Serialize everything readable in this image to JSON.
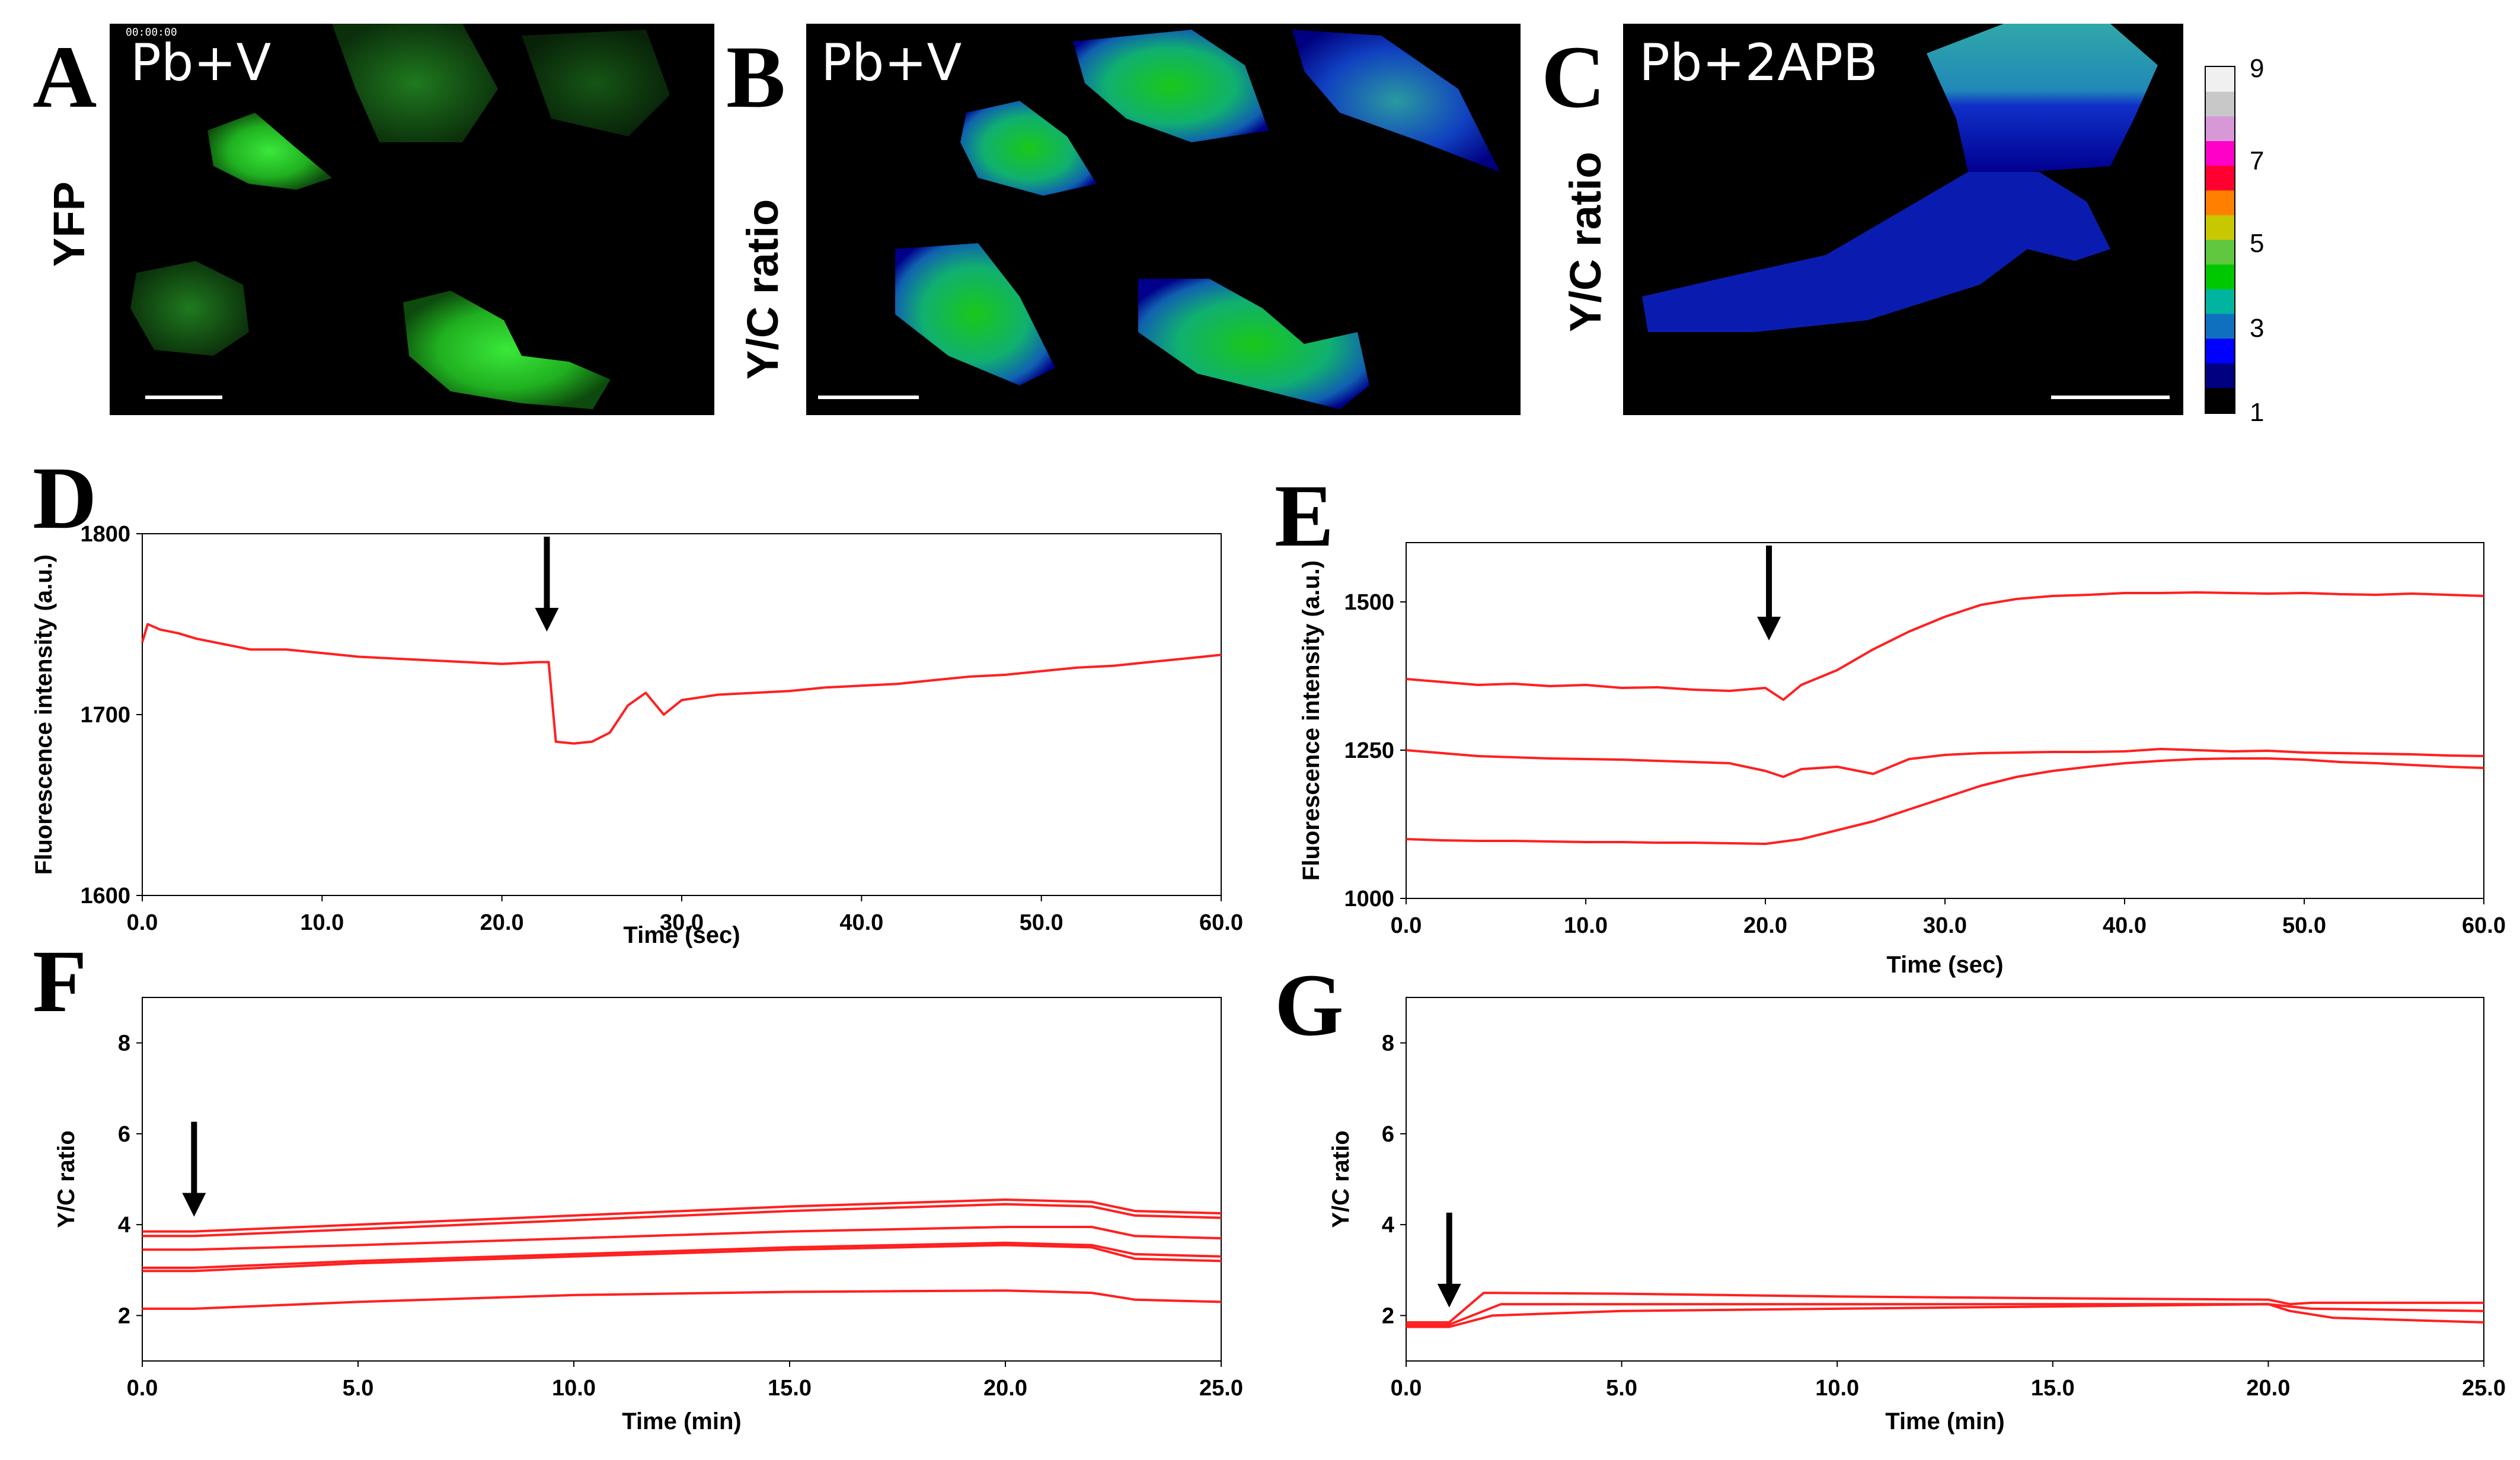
{
  "image_panels": [
    {
      "letter": "A",
      "label": "Pb+V",
      "side_label": "YFP",
      "timestamp": "00:00:00"
    },
    {
      "letter": "B",
      "label": "Pb+V",
      "side_label": "Y/C ratio"
    },
    {
      "letter": "C",
      "label": "Pb+2APB",
      "side_label": "Y/C ratio"
    }
  ],
  "colorbar": {
    "ticks": [
      "9",
      "7",
      "5",
      "3",
      "1"
    ],
    "colors": [
      "#f0f0f0",
      "#c8c8c8",
      "#d898d8",
      "#ff00c8",
      "#ff0030",
      "#ff8000",
      "#c8c800",
      "#60c840",
      "#00c800",
      "#00b4a0",
      "#1070c0",
      "#0000ff",
      "#000080",
      "#000000"
    ]
  },
  "accent_color": "#ff2020",
  "chart_data": [
    {
      "letter": "D",
      "type": "line",
      "xlabel": "Time (sec)",
      "ylabel": "Fluorescence intensity (a.u.)",
      "xlim": [
        0,
        60
      ],
      "ylim": [
        1600,
        1800
      ],
      "xticks": [
        "0.0",
        "10.0",
        "20.0",
        "30.0",
        "40.0",
        "50.0",
        "60.0"
      ],
      "yticks": [
        "1600",
        "1700",
        "1800"
      ],
      "arrow_at": 22.5,
      "series": [
        {
          "x": [
            0,
            0.3,
            1,
            2,
            3,
            4,
            5,
            6,
            8,
            10,
            12,
            14,
            16,
            18,
            20,
            22,
            22.6,
            23,
            24,
            25,
            26,
            27,
            28,
            29,
            30,
            32,
            34,
            36,
            38,
            40,
            42,
            44,
            46,
            48,
            50,
            52,
            54,
            56,
            58,
            60
          ],
          "y": [
            1740,
            1750,
            1747,
            1745,
            1742,
            1740,
            1738,
            1736,
            1736,
            1734,
            1732,
            1731,
            1730,
            1729,
            1728,
            1729,
            1729,
            1685,
            1684,
            1685,
            1690,
            1705,
            1712,
            1700,
            1708,
            1711,
            1712,
            1713,
            1715,
            1716,
            1717,
            1719,
            1721,
            1722,
            1724,
            1726,
            1727,
            1729,
            1731,
            1733
          ]
        }
      ]
    },
    {
      "letter": "E",
      "type": "line",
      "xlabel": "Time (sec)",
      "ylabel": "Fluorescence intensity (a.u.)",
      "xlim": [
        0,
        60
      ],
      "ylim": [
        1000,
        1600
      ],
      "xticks": [
        "0.0",
        "10.0",
        "20.0",
        "30.0",
        "40.0",
        "50.0",
        "60.0"
      ],
      "yticks": [
        "1000",
        "1250",
        "1500"
      ],
      "arrow_at": 20.2,
      "series": [
        {
          "x": [
            0,
            2,
            4,
            6,
            8,
            10,
            12,
            14,
            16,
            18,
            20,
            21,
            22,
            24,
            26,
            28,
            30,
            32,
            34,
            36,
            38,
            40,
            42,
            44,
            46,
            48,
            50,
            52,
            54,
            56,
            58,
            60
          ],
          "y": [
            1370,
            1365,
            1360,
            1362,
            1358,
            1360,
            1355,
            1356,
            1352,
            1350,
            1355,
            1335,
            1360,
            1385,
            1420,
            1450,
            1475,
            1495,
            1505,
            1510,
            1512,
            1515,
            1515,
            1516,
            1515,
            1514,
            1515,
            1513,
            1512,
            1514,
            1512,
            1510
          ]
        },
        {
          "x": [
            0,
            2,
            4,
            6,
            8,
            10,
            12,
            14,
            16,
            18,
            20,
            21,
            22,
            24,
            26,
            28,
            30,
            32,
            34,
            36,
            38,
            40,
            42,
            44,
            46,
            48,
            50,
            52,
            54,
            56,
            58,
            60
          ],
          "y": [
            1250,
            1245,
            1240,
            1238,
            1236,
            1235,
            1234,
            1232,
            1230,
            1228,
            1215,
            1205,
            1218,
            1222,
            1210,
            1235,
            1242,
            1245,
            1246,
            1247,
            1247,
            1248,
            1252,
            1250,
            1248,
            1249,
            1246,
            1245,
            1244,
            1243,
            1241,
            1240
          ]
        },
        {
          "x": [
            0,
            2,
            4,
            6,
            8,
            10,
            12,
            14,
            16,
            18,
            20,
            22,
            24,
            26,
            28,
            30,
            32,
            34,
            36,
            38,
            40,
            42,
            44,
            46,
            48,
            50,
            52,
            54,
            56,
            58,
            60
          ],
          "y": [
            1100,
            1098,
            1097,
            1097,
            1096,
            1095,
            1095,
            1094,
            1094,
            1093,
            1092,
            1100,
            1115,
            1130,
            1150,
            1170,
            1190,
            1205,
            1215,
            1222,
            1228,
            1232,
            1235,
            1236,
            1236,
            1234,
            1230,
            1228,
            1225,
            1222,
            1220
          ]
        }
      ]
    },
    {
      "letter": "F",
      "type": "line",
      "xlabel": "Time (min)",
      "ylabel": "Y/C ratio",
      "xlim": [
        0,
        25
      ],
      "ylim": [
        1,
        9
      ],
      "xticks": [
        "0.0",
        "5.0",
        "10.0",
        "15.0",
        "20.0",
        "25.0"
      ],
      "yticks": [
        "2",
        "4",
        "6",
        "8"
      ],
      "arrow_at": 1.2,
      "series": [
        {
          "x": [
            0,
            1.2,
            5,
            10,
            15,
            20,
            22,
            23,
            25
          ],
          "y": [
            3.85,
            3.85,
            4.0,
            4.2,
            4.4,
            4.55,
            4.5,
            4.3,
            4.25
          ]
        },
        {
          "x": [
            0,
            1.2,
            5,
            10,
            15,
            20,
            22,
            23,
            25
          ],
          "y": [
            3.75,
            3.75,
            3.9,
            4.1,
            4.3,
            4.45,
            4.4,
            4.2,
            4.15
          ]
        },
        {
          "x": [
            0,
            1.2,
            5,
            10,
            15,
            20,
            22,
            23,
            25
          ],
          "y": [
            3.45,
            3.45,
            3.55,
            3.7,
            3.85,
            3.95,
            3.95,
            3.75,
            3.7
          ]
        },
        {
          "x": [
            0,
            1.2,
            5,
            10,
            15,
            20,
            22,
            23,
            25
          ],
          "y": [
            3.05,
            3.05,
            3.2,
            3.35,
            3.5,
            3.6,
            3.55,
            3.35,
            3.3
          ]
        },
        {
          "x": [
            0,
            1.2,
            5,
            10,
            15,
            20,
            22,
            23,
            25
          ],
          "y": [
            2.98,
            2.98,
            3.15,
            3.3,
            3.45,
            3.55,
            3.5,
            3.25,
            3.2
          ]
        },
        {
          "x": [
            0,
            1.2,
            5,
            10,
            15,
            20,
            22,
            23,
            25
          ],
          "y": [
            2.15,
            2.15,
            2.3,
            2.45,
            2.52,
            2.55,
            2.5,
            2.35,
            2.3
          ]
        }
      ]
    },
    {
      "letter": "G",
      "type": "line",
      "xlabel": "Time (min)",
      "ylabel": "Y/C ratio",
      "xlim": [
        0,
        25
      ],
      "ylim": [
        1,
        9
      ],
      "xticks": [
        "0.0",
        "5.0",
        "10.0",
        "15.0",
        "20.0",
        "25.0"
      ],
      "yticks": [
        "2",
        "4",
        "6",
        "8"
      ],
      "arrow_at": 1.0,
      "series": [
        {
          "x": [
            0,
            1,
            1.8,
            5,
            10,
            15,
            20,
            20.5,
            21,
            25
          ],
          "y": [
            1.85,
            1.85,
            2.5,
            2.48,
            2.42,
            2.38,
            2.35,
            2.25,
            2.28,
            2.28
          ]
        },
        {
          "x": [
            0,
            1,
            2.2,
            5,
            10,
            15,
            20,
            20.5,
            21,
            25
          ],
          "y": [
            1.8,
            1.8,
            2.25,
            2.25,
            2.25,
            2.25,
            2.25,
            2.2,
            2.15,
            2.1
          ]
        },
        {
          "x": [
            0,
            1,
            2,
            5,
            10,
            15,
            20,
            20.5,
            21.5,
            25
          ],
          "y": [
            1.75,
            1.75,
            2.0,
            2.1,
            2.15,
            2.2,
            2.25,
            2.1,
            1.95,
            1.85
          ]
        }
      ]
    }
  ]
}
